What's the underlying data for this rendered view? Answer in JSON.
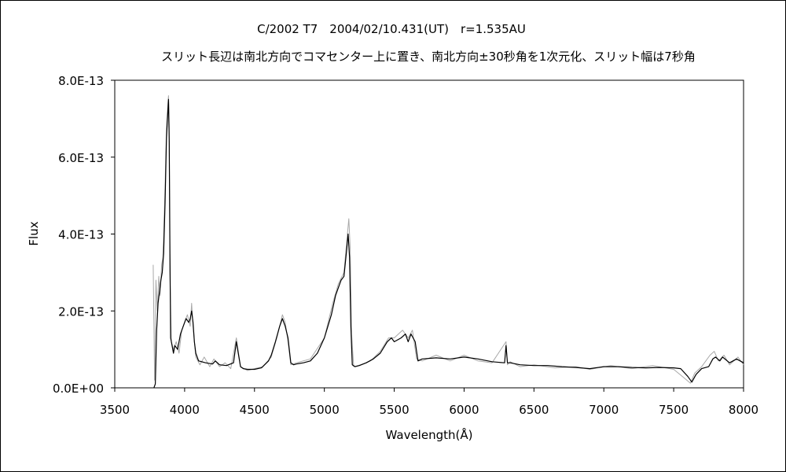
{
  "chart_data": {
    "type": "line",
    "title": "C/2002 T7　2004/02/10.431(UT)　r=1.535AU",
    "subtitle": "スリット長辺は南北方向でコマセンター上に置き、南北方向±30秒角を1次元化、スリット幅は7秒角",
    "xlabel": "Wavelength(Å)",
    "ylabel": "Flux",
    "xlim": [
      3500,
      8000
    ],
    "ylim": [
      0,
      8e-13
    ],
    "x_ticks": [
      3500,
      4000,
      4500,
      5000,
      5500,
      6000,
      6500,
      7000,
      7500,
      8000
    ],
    "x_tick_labels": [
      "3500",
      "4000",
      "4500",
      "5000",
      "5500",
      "6000",
      "6500",
      "7000",
      "7500",
      "8000"
    ],
    "y_ticks": [
      0,
      2e-13,
      4e-13,
      6e-13,
      8e-13
    ],
    "y_tick_labels": [
      "0.0E+00",
      "2.0E-13",
      "4.0E-13",
      "6.0E-13",
      "8.0E-13"
    ],
    "grid": false,
    "legend": "none",
    "series": [
      {
        "color": "#000000",
        "x": [
          3780,
          3790,
          3800,
          3810,
          3820,
          3830,
          3840,
          3850,
          3860,
          3870,
          3880,
          3885,
          3890,
          3895,
          3900,
          3910,
          3920,
          3930,
          3950,
          3970,
          3990,
          4010,
          4030,
          4040,
          4050,
          4060,
          4070,
          4080,
          4100,
          4150,
          4200,
          4220,
          4250,
          4300,
          4350,
          4370,
          4400,
          4420,
          4450,
          4500,
          4550,
          4600,
          4620,
          4650,
          4680,
          4700,
          4720,
          4740,
          4760,
          4780,
          4800,
          4850,
          4900,
          4950,
          5000,
          5050,
          5080,
          5100,
          5120,
          5140,
          5160,
          5170,
          5180,
          5190,
          5200,
          5220,
          5250,
          5300,
          5350,
          5400,
          5450,
          5480,
          5500,
          5550,
          5580,
          5600,
          5620,
          5650,
          5670,
          5700,
          5800,
          5900,
          6000,
          6100,
          6200,
          6290,
          6300,
          6310,
          6330,
          6400,
          6500,
          6600,
          6700,
          6800,
          6900,
          7000,
          7100,
          7200,
          7300,
          7400,
          7500,
          7550,
          7600,
          7630,
          7660,
          7700,
          7750,
          7780,
          7800,
          7830,
          7850,
          7900,
          7950,
          8000
        ],
        "y": [
          0.0,
          1e-14,
          1.5e-13,
          2.2e-13,
          2.5e-13,
          2.8e-13,
          3e-13,
          3.5e-13,
          4.8e-13,
          6.5e-13,
          7.2e-13,
          7.5e-13,
          6.4e-13,
          3.5e-13,
          1.3e-13,
          1.1e-13,
          9e-14,
          1.1e-13,
          1e-13,
          1.4e-13,
          1.6e-13,
          1.8e-13,
          1.7e-13,
          1.8e-13,
          2e-13,
          1.7e-13,
          1.2e-13,
          9e-14,
          7e-14,
          6.5e-14,
          6.2e-14,
          7e-14,
          6e-14,
          5.8e-14,
          6.5e-14,
          1.2e-13,
          5.5e-14,
          5e-14,
          4.8e-14,
          4.8e-14,
          5.2e-14,
          7e-14,
          8.5e-14,
          1.2e-13,
          1.6e-13,
          1.8e-13,
          1.6e-13,
          1.3e-13,
          6.5e-14,
          6e-14,
          6.2e-14,
          6.5e-14,
          7e-14,
          9e-14,
          1.3e-13,
          1.9e-13,
          2.4e-13,
          2.6e-13,
          2.8e-13,
          2.9e-13,
          3.6e-13,
          4e-13,
          3.4e-13,
          1.6e-13,
          6e-14,
          5.5e-14,
          5.8e-14,
          6.5e-14,
          7.5e-14,
          9e-14,
          1.2e-13,
          1.3e-13,
          1.2e-13,
          1.3e-13,
          1.4e-13,
          1.2e-13,
          1.4e-13,
          1.2e-13,
          7e-14,
          7.5e-14,
          7.8e-14,
          7.5e-14,
          8e-14,
          7.5e-14,
          6.8e-14,
          6.5e-14,
          1.1e-13,
          6.5e-14,
          6.5e-14,
          6e-14,
          5.8e-14,
          5.8e-14,
          5.5e-14,
          5.3e-14,
          5e-14,
          5.5e-14,
          5.5e-14,
          5.3e-14,
          5.2e-14,
          5.3e-14,
          5.2e-14,
          5e-14,
          3e-14,
          1.5e-14,
          3.5e-14,
          5e-14,
          5.5e-14,
          7.5e-14,
          8e-14,
          7e-14,
          8e-14,
          6.5e-14,
          7.5e-14,
          6.5e-14
        ]
      },
      {
        "color": "#a8a8a8",
        "x": [
          3775,
          3785,
          3795,
          3805,
          3815,
          3825,
          3835,
          3845,
          3860,
          3870,
          3880,
          3885,
          3890,
          3895,
          3905,
          3920,
          3940,
          3960,
          3980,
          4000,
          4020,
          4040,
          4050,
          4060,
          4080,
          4110,
          4140,
          4180,
          4210,
          4250,
          4290,
          4330,
          4370,
          4400,
          4450,
          4500,
          4560,
          4620,
          4660,
          4700,
          4720,
          4740,
          4760,
          4800,
          4900,
          5000,
          5060,
          5100,
          5140,
          5160,
          5175,
          5185,
          5195,
          5210,
          5260,
          5330,
          5400,
          5460,
          5500,
          5560,
          5600,
          5630,
          5660,
          5700,
          5800,
          5900,
          6000,
          6100,
          6200,
          6300,
          6310,
          6330,
          6400,
          6500,
          6650,
          6800,
          6900,
          7050,
          7200,
          7350,
          7500,
          7560,
          7620,
          7650,
          7700,
          7760,
          7790,
          7820,
          7860,
          7900,
          7960,
          8000
        ],
        "y": [
          3.2e-13,
          2e-14,
          2.8e-13,
          2e-13,
          2.9e-13,
          2.4e-13,
          3.2e-13,
          3.4e-13,
          5.2e-13,
          6.8e-13,
          7.4e-13,
          7.6e-13,
          6.8e-13,
          3e-13,
          1.2e-13,
          1e-13,
          1.2e-13,
          9e-14,
          1.5e-13,
          1.7e-13,
          1.9e-13,
          1.6e-13,
          2.2e-13,
          1.6e-13,
          8e-14,
          6e-14,
          8e-14,
          5.5e-14,
          7.5e-14,
          5.5e-14,
          6.5e-14,
          5e-14,
          1.3e-13,
          5.5e-14,
          4.5e-14,
          5e-14,
          5.5e-14,
          8e-14,
          1.3e-13,
          1.9e-13,
          1.7e-13,
          1.2e-13,
          6e-14,
          6.5e-14,
          7.5e-14,
          1.3e-13,
          2.2e-13,
          2.7e-13,
          3e-13,
          3.8e-13,
          4.4e-13,
          3.6e-13,
          1.4e-13,
          5.5e-14,
          6e-14,
          7e-14,
          9.5e-14,
          1.3e-13,
          1.3e-13,
          1.5e-13,
          1.3e-13,
          1.5e-13,
          7.5e-14,
          7e-14,
          8.5e-14,
          7e-14,
          8.5e-14,
          7e-14,
          6.5e-14,
          1.2e-13,
          6e-14,
          6.8e-14,
          5.5e-14,
          6e-14,
          5.2e-14,
          5.5e-14,
          4.8e-14,
          5.8e-14,
          5e-14,
          5.8e-14,
          4.8e-14,
          3e-14,
          1.2e-14,
          3.8e-14,
          5.5e-14,
          8.5e-14,
          9.5e-14,
          7e-14,
          8.5e-14,
          6e-14,
          8e-14,
          6e-14
        ]
      }
    ]
  }
}
